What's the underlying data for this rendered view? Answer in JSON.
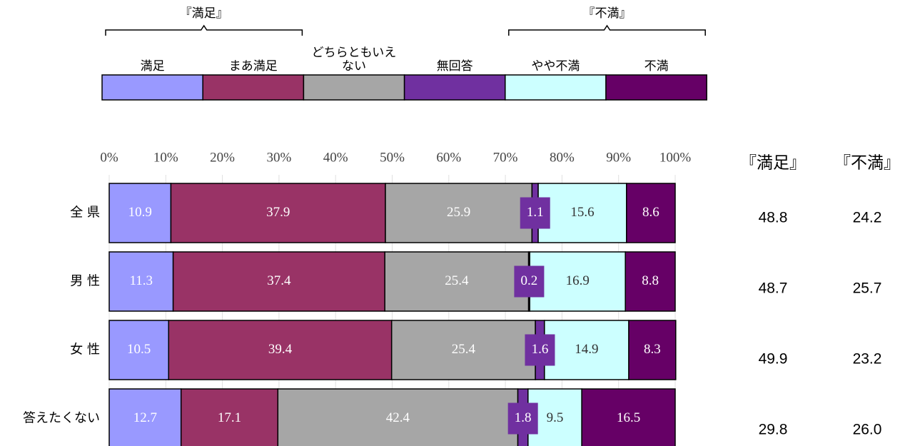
{
  "chart_data": {
    "type": "stacked_bar_horizontal",
    "legend_groups": [
      {
        "name": "『満足』",
        "from": 0,
        "to": 1
      },
      {
        "name": "『不満』",
        "from": 4,
        "to": 5
      }
    ],
    "categories": [
      "全 県",
      "男 性",
      "女 性",
      "答えたくない"
    ],
    "series": [
      {
        "name": "満足",
        "color": "#9999ff",
        "values": [
          10.9,
          11.3,
          10.5,
          12.7
        ]
      },
      {
        "name": "まあ満足",
        "color": "#993366",
        "values": [
          37.9,
          37.4,
          39.4,
          17.1
        ]
      },
      {
        "name": "どちらともいえない",
        "color": "#a6a6a6",
        "values": [
          25.9,
          25.4,
          25.4,
          42.4
        ]
      },
      {
        "name": "無回答",
        "color": "#7030a0",
        "values": [
          1.1,
          0.2,
          1.6,
          1.8
        ]
      },
      {
        "name": "やや不満",
        "color": "#ccffff",
        "values": [
          15.6,
          16.9,
          14.9,
          9.5
        ]
      },
      {
        "name": "不満",
        "color": "#660066",
        "values": [
          8.6,
          8.8,
          8.3,
          16.5
        ]
      }
    ],
    "xlim": [
      0,
      100
    ],
    "xticks": [
      {
        "value": 0,
        "label": "0%"
      },
      {
        "value": 10,
        "label": "10%"
      },
      {
        "value": 20,
        "label": "20%"
      },
      {
        "value": 30,
        "label": "30%"
      },
      {
        "value": 40,
        "label": "40%"
      },
      {
        "value": 50,
        "label": "50%"
      },
      {
        "value": 60,
        "label": "60%"
      },
      {
        "value": 70,
        "label": "70%"
      },
      {
        "value": 80,
        "label": "80%"
      },
      {
        "value": 90,
        "label": "90%"
      },
      {
        "value": 100,
        "label": "100%"
      }
    ],
    "grid": true,
    "summary_columns": [
      {
        "name": "『満足』",
        "values": [
          48.8,
          48.7,
          49.9,
          29.8
        ]
      },
      {
        "name": "『不満』",
        "values": [
          24.2,
          25.7,
          23.2,
          26.0
        ],
        "value_labels": [
          "24.2",
          "25.7",
          "23.2",
          "26.0"
        ]
      }
    ]
  }
}
